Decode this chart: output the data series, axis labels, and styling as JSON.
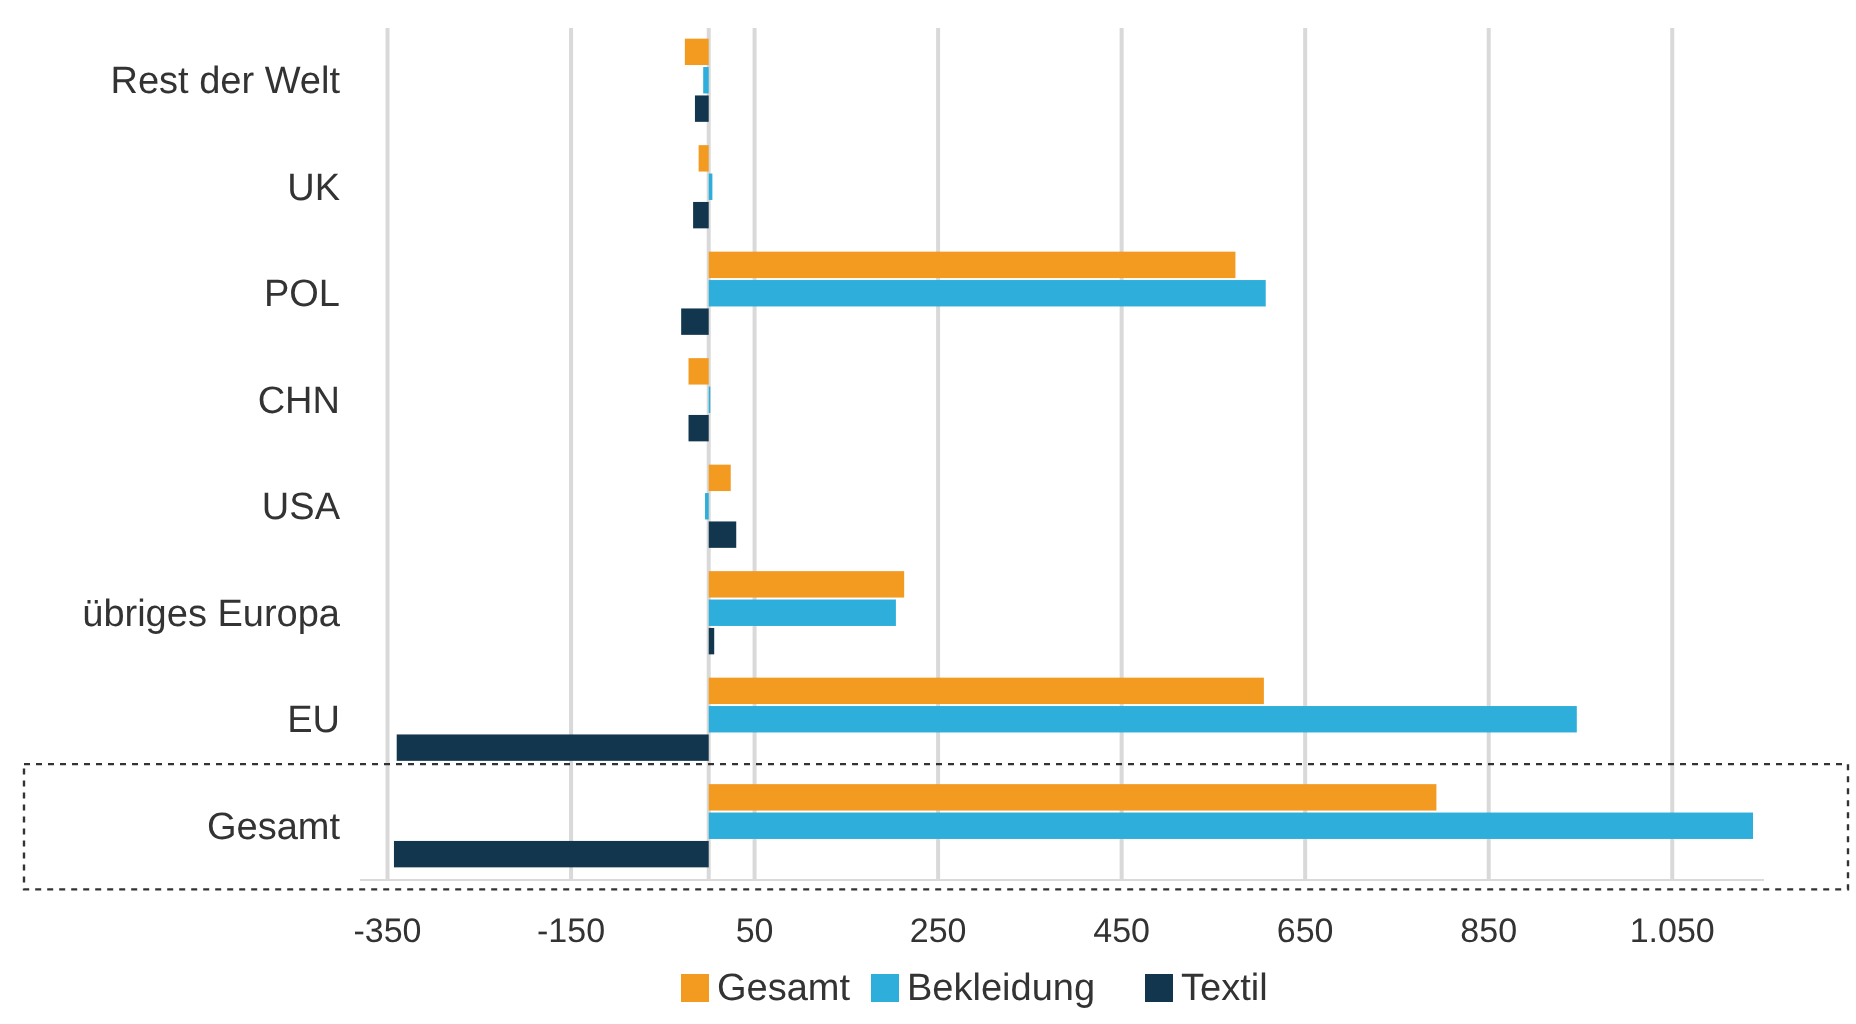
{
  "chart_data": {
    "type": "bar",
    "orientation": "horizontal",
    "categories": [
      "Rest der Welt",
      "UK",
      "POL",
      "CHN",
      "USA",
      "übriges Europa",
      "EU",
      "Gesamt"
    ],
    "series": [
      {
        "name": "Gesamt",
        "color": "#f39a21",
        "values": [
          -26,
          -11,
          574,
          -22,
          24,
          213,
          605,
          793
        ]
      },
      {
        "name": "Bekleidung",
        "color": "#2eaedb",
        "values": [
          -6,
          4,
          607,
          0,
          -4,
          204,
          946,
          1138
        ]
      },
      {
        "name": "Textil",
        "color": "#12364d",
        "values": [
          -15,
          -17,
          -30,
          -22,
          30,
          6,
          -340,
          -343
        ]
      }
    ],
    "xlim": [
      -380,
      1150
    ],
    "xticks": [
      {
        "value": -350,
        "label": "-350"
      },
      {
        "value": -150,
        "label": "-150"
      },
      50,
      250,
      450,
      650,
      850,
      {
        "value": 1050,
        "label": "1.050"
      }
    ],
    "grid": "x",
    "legend": "bottom"
  }
}
